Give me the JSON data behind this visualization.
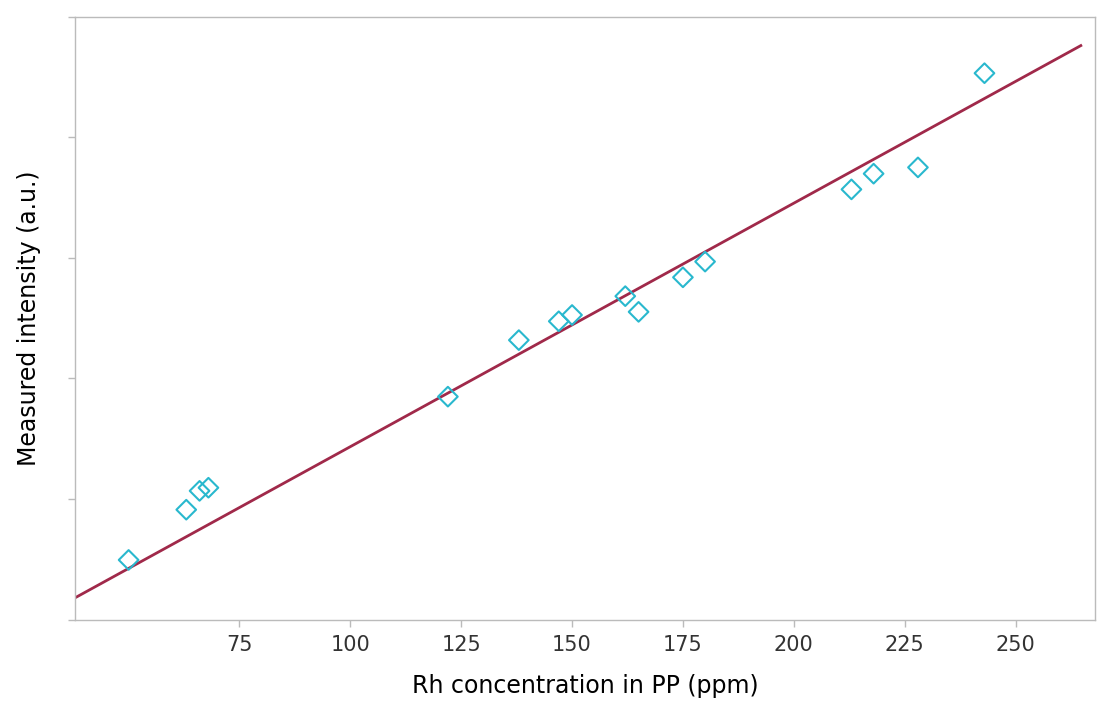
{
  "scatter_x": [
    50,
    63,
    66,
    68,
    122,
    138,
    147,
    150,
    162,
    165,
    175,
    180,
    213,
    218,
    228,
    243
  ],
  "scatter_y": [
    0.155,
    0.235,
    0.265,
    0.27,
    0.415,
    0.505,
    0.535,
    0.545,
    0.575,
    0.55,
    0.605,
    0.63,
    0.745,
    0.77,
    0.78,
    0.93
  ],
  "line_x": [
    38,
    265
  ],
  "line_y": [
    0.095,
    0.975
  ],
  "xlabel": "Rh concentration in PP (ppm)",
  "ylabel": "Measured intensity (a.u.)",
  "scatter_color": "#29B8CE",
  "line_color": "#A0294A",
  "bg_color": "#FFFFFF",
  "plot_bg_color": "#FFFFFF",
  "xlabel_fontsize": 17,
  "ylabel_fontsize": 17,
  "tick_fontsize": 15,
  "marker_size": 10,
  "marker_linewidth": 1.5,
  "line_width": 2.0,
  "xlim": [
    38,
    268
  ],
  "ylim": [
    0.06,
    1.02
  ],
  "xticks": [
    75,
    100,
    125,
    150,
    175,
    200,
    225,
    250
  ],
  "spine_color": "#BBBBBB",
  "tick_color": "#BBBBBB"
}
